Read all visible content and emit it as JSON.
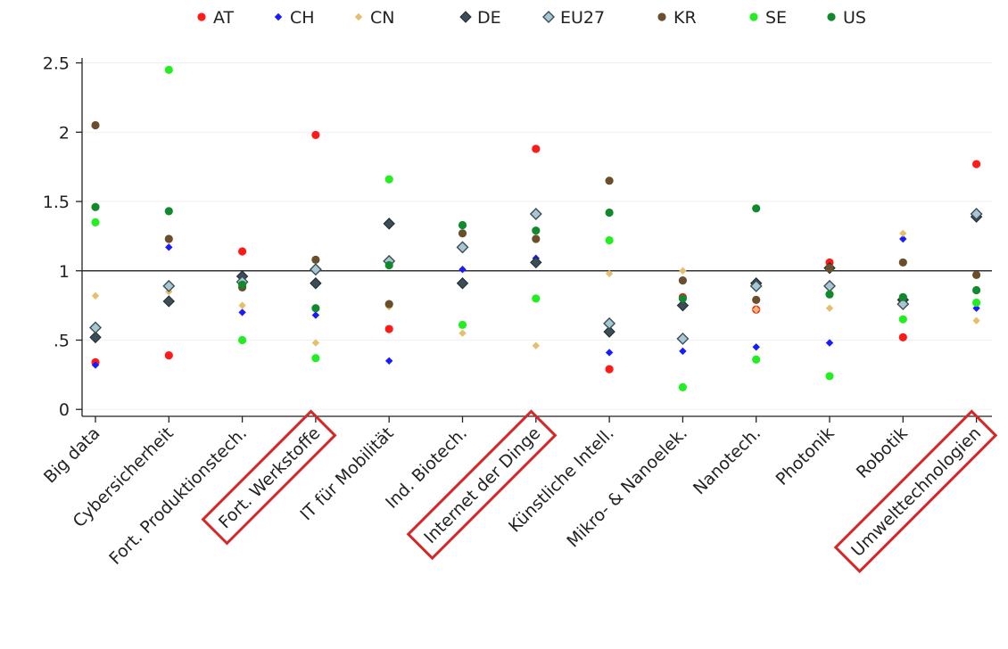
{
  "chart_data": {
    "type": "scatter",
    "categories": [
      "Big data",
      "Cybersicherheit",
      "Fort. Produktionstech.",
      "Fort. Werkstoffe",
      "IT für Mobilität",
      "Ind. Biotech.",
      "Internet der Dinge",
      "Künstliche Intell.",
      "Mikro- & Nanoelek.",
      "Nanotech.",
      "Photonik",
      "Robotik",
      "Umwelttechnologien"
    ],
    "highlighted_categories": [
      "Fort. Werkstoffe",
      "Internet der Dinge",
      "Umwelttechnologien"
    ],
    "highlight_color": "#d62728",
    "y_ticks": [
      {
        "value": 0,
        "label": "0"
      },
      {
        "value": 0.5,
        "label": ".5"
      },
      {
        "value": 1,
        "label": "1"
      },
      {
        "value": 1.5,
        "label": "1.5"
      },
      {
        "value": 2,
        "label": "2"
      },
      {
        "value": 2.5,
        "label": "2.5"
      }
    ],
    "ylim": [
      -0.05,
      2.6
    ],
    "reference_line": 1,
    "grid": true,
    "legend_position": "top",
    "series": [
      {
        "name": "AT",
        "color": "#ff1a1a",
        "marker": "circle",
        "values": [
          0.34,
          0.39,
          1.14,
          1.98,
          0.58,
          0.91,
          1.88,
          0.29,
          0.81,
          0.72,
          1.06,
          0.52,
          1.77
        ]
      },
      {
        "name": "CH",
        "color": "#1a1aff",
        "marker": "diamond-small",
        "values": [
          0.32,
          1.17,
          0.7,
          0.68,
          0.35,
          1.01,
          1.09,
          0.41,
          0.42,
          0.45,
          0.48,
          1.23,
          0.73
        ]
      },
      {
        "name": "CN",
        "color": "#e6bf6e",
        "marker": "diamond-small",
        "values": [
          0.82,
          0.85,
          0.75,
          0.48,
          0.74,
          0.55,
          0.46,
          0.98,
          1.0,
          0.72,
          0.73,
          1.27,
          0.64
        ]
      },
      {
        "name": "DE",
        "color": "#3c4d57",
        "marker": "diamond",
        "values": [
          0.52,
          0.78,
          0.96,
          0.91,
          1.34,
          0.91,
          1.06,
          0.56,
          0.75,
          0.91,
          1.02,
          0.79,
          1.39
        ]
      },
      {
        "name": "EU27",
        "color": "#a9c6d3",
        "marker": "diamond-outline",
        "values": [
          0.59,
          0.89,
          0.92,
          1.01,
          1.07,
          1.17,
          1.41,
          0.62,
          0.51,
          0.89,
          0.89,
          0.76,
          1.41
        ]
      },
      {
        "name": "KR",
        "color": "#6b4f2c",
        "marker": "circle",
        "values": [
          2.05,
          1.23,
          0.88,
          1.08,
          0.76,
          1.27,
          1.23,
          1.65,
          0.93,
          0.79,
          1.02,
          1.06,
          0.97
        ]
      },
      {
        "name": "SE",
        "color": "#22ee22",
        "marker": "circle",
        "values": [
          1.35,
          2.45,
          0.5,
          0.37,
          1.66,
          0.61,
          0.8,
          1.22,
          0.16,
          0.36,
          0.24,
          0.65,
          0.77
        ]
      },
      {
        "name": "US",
        "color": "#118a2e",
        "marker": "circle",
        "values": [
          1.46,
          1.43,
          0.9,
          0.73,
          1.04,
          1.33,
          1.29,
          1.42,
          0.8,
          1.45,
          0.83,
          0.81,
          0.86
        ]
      }
    ]
  }
}
